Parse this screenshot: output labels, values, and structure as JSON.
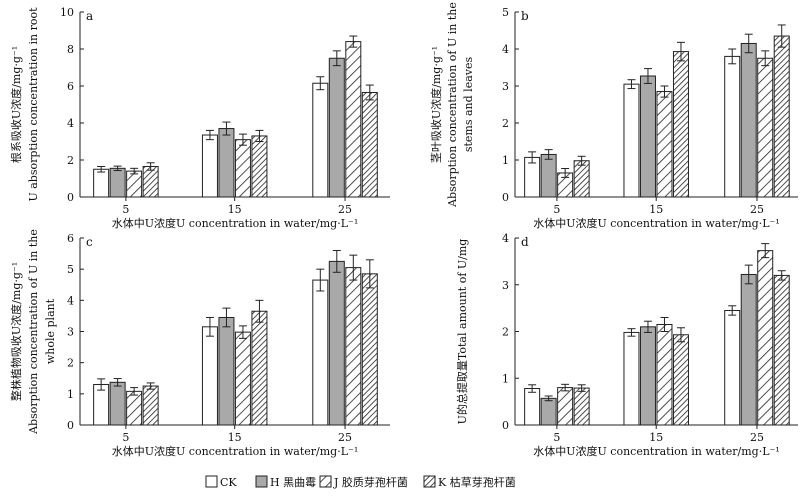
{
  "figure": {
    "legend": [
      {
        "label": "CK",
        "key": "ck"
      },
      {
        "label": "H 黑曲霉",
        "key": "h"
      },
      {
        "label": "J 胶质芽孢杆菌",
        "key": "j"
      },
      {
        "label": "K 枯草芽孢杆菌",
        "key": "k"
      }
    ],
    "colors": {
      "ck": "#ffffff",
      "h": "#a9a9a9",
      "stroke": "#222222"
    },
    "patterns": {
      "ck": "solid",
      "h": "solid",
      "j": "diagonal-hatch",
      "k": "dense-diagonal-hatch"
    }
  },
  "chart_data": [
    {
      "type": "bar",
      "panel": "a",
      "categories": [
        "5",
        "15",
        "25"
      ],
      "xlabel": "水体中U浓度U concentration in water/mg·L⁻¹",
      "ylabel_lines": [
        "根系吸收U浓度/mg·g⁻¹",
        "U absorption concentration in root"
      ],
      "ylim": [
        0,
        10
      ],
      "yticks": [
        "0",
        "2",
        "4",
        "6",
        "8",
        "10"
      ],
      "series": [
        {
          "name": "CK",
          "values": [
            1.5,
            3.35,
            6.15
          ],
          "errors": [
            0.15,
            0.25,
            0.35
          ]
        },
        {
          "name": "H 黑曲霉",
          "values": [
            1.55,
            3.7,
            7.5
          ],
          "errors": [
            0.12,
            0.35,
            0.4
          ]
        },
        {
          "name": "J 胶质芽孢杆菌",
          "values": [
            1.4,
            3.1,
            8.4
          ],
          "errors": [
            0.15,
            0.3,
            0.3
          ]
        },
        {
          "name": "K 枯草芽孢杆菌",
          "values": [
            1.65,
            3.3,
            5.65
          ],
          "errors": [
            0.2,
            0.3,
            0.4
          ]
        }
      ]
    },
    {
      "type": "bar",
      "panel": "b",
      "categories": [
        "5",
        "15",
        "25"
      ],
      "xlabel": "水体中U浓度U concentration in water/mg·L⁻¹",
      "ylabel_lines": [
        "茎叶吸收U浓度/mg·g⁻¹",
        "Absorption concentration of U in the",
        "stems and leaves"
      ],
      "ylim": [
        0,
        5
      ],
      "yticks": [
        "0",
        "1",
        "2",
        "3",
        "4",
        "5"
      ],
      "series": [
        {
          "name": "CK",
          "values": [
            1.07,
            3.05,
            3.8
          ],
          "errors": [
            0.15,
            0.12,
            0.2
          ]
        },
        {
          "name": "H 黑曲霉",
          "values": [
            1.15,
            3.27,
            4.15
          ],
          "errors": [
            0.13,
            0.2,
            0.25
          ]
        },
        {
          "name": "J 胶质芽孢杆菌",
          "values": [
            0.65,
            2.85,
            3.75
          ],
          "errors": [
            0.12,
            0.15,
            0.2
          ]
        },
        {
          "name": "K 枯草芽孢杆菌",
          "values": [
            0.98,
            3.93,
            4.35
          ],
          "errors": [
            0.12,
            0.25,
            0.3
          ]
        }
      ]
    },
    {
      "type": "bar",
      "panel": "c",
      "categories": [
        "5",
        "15",
        "25"
      ],
      "xlabel": "水体中U浓度U concentration in water/mg·L⁻¹",
      "ylabel_lines": [
        "整株植物吸收U浓度/mg·g⁻¹",
        "Absorption concentration of U in the",
        "whole plant"
      ],
      "ylim": [
        0,
        6
      ],
      "yticks": [
        "0",
        "1",
        "2",
        "3",
        "4",
        "5",
        "6"
      ],
      "series": [
        {
          "name": "CK",
          "values": [
            1.3,
            3.15,
            4.65
          ],
          "errors": [
            0.18,
            0.3,
            0.35
          ]
        },
        {
          "name": "H 黑曲霉",
          "values": [
            1.37,
            3.45,
            5.25
          ],
          "errors": [
            0.12,
            0.3,
            0.35
          ]
        },
        {
          "name": "J 胶质芽孢杆菌",
          "values": [
            1.08,
            2.98,
            5.05
          ],
          "errors": [
            0.12,
            0.2,
            0.4
          ]
        },
        {
          "name": "K 枯草芽孢杆菌",
          "values": [
            1.25,
            3.65,
            4.85
          ],
          "errors": [
            0.1,
            0.35,
            0.45
          ]
        }
      ]
    },
    {
      "type": "bar",
      "panel": "d",
      "categories": [
        "5",
        "15",
        "25"
      ],
      "xlabel": "水体中U浓度U concentration in water/mg·L⁻¹",
      "ylabel_lines": [
        "U的总提取量Total amount of U/mg"
      ],
      "ylim": [
        0,
        4
      ],
      "yticks": [
        "0",
        "1",
        "2",
        "3",
        "4"
      ],
      "series": [
        {
          "name": "CK",
          "values": [
            0.78,
            1.98,
            2.45
          ],
          "errors": [
            0.08,
            0.08,
            0.1
          ]
        },
        {
          "name": "H 黑曲霉",
          "values": [
            0.57,
            2.1,
            3.22
          ],
          "errors": [
            0.05,
            0.12,
            0.2
          ]
        },
        {
          "name": "J 胶质芽孢杆菌",
          "values": [
            0.8,
            2.15,
            3.73
          ],
          "errors": [
            0.07,
            0.15,
            0.15
          ]
        },
        {
          "name": "K 枯草芽孢杆菌",
          "values": [
            0.79,
            1.93,
            3.2
          ],
          "errors": [
            0.07,
            0.15,
            0.1
          ]
        }
      ]
    }
  ]
}
